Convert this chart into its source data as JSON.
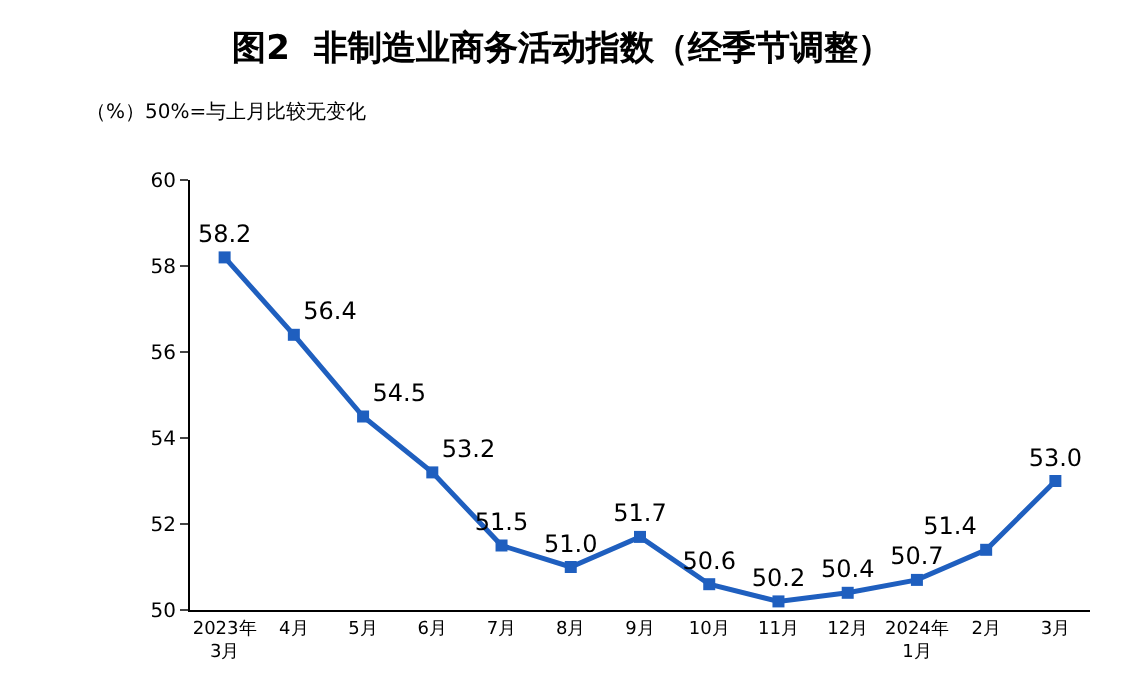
{
  "chart_data": {
    "type": "line",
    "title": "图2  非制造业商务活动指数（经季节调整）",
    "annotations": [
      "（%）50%=与上月比较无变化"
    ],
    "categories": [
      "2023年\n3月",
      "4月",
      "5月",
      "6月",
      "7月",
      "8月",
      "9月",
      "10月",
      "11月",
      "12月",
      "2024年\n1月",
      "2月",
      "3月"
    ],
    "series": [
      {
        "color": "#1f5fbf",
        "values": [
          58.2,
          56.4,
          54.5,
          53.2,
          51.5,
          51.0,
          51.7,
          50.6,
          50.2,
          50.4,
          50.7,
          51.4,
          53.0
        ],
        "value_labels": [
          "58.2",
          "56.4",
          "54.5",
          "53.2",
          "51.5",
          "51.0",
          "51.7",
          "50.6",
          "50.2",
          "50.4",
          "50.7",
          "51.4",
          "53.0"
        ]
      }
    ],
    "ylim": [
      50,
      60
    ],
    "yticks": [
      50,
      52,
      54,
      56,
      58,
      60
    ],
    "marker": "square",
    "line_style": "solid"
  }
}
